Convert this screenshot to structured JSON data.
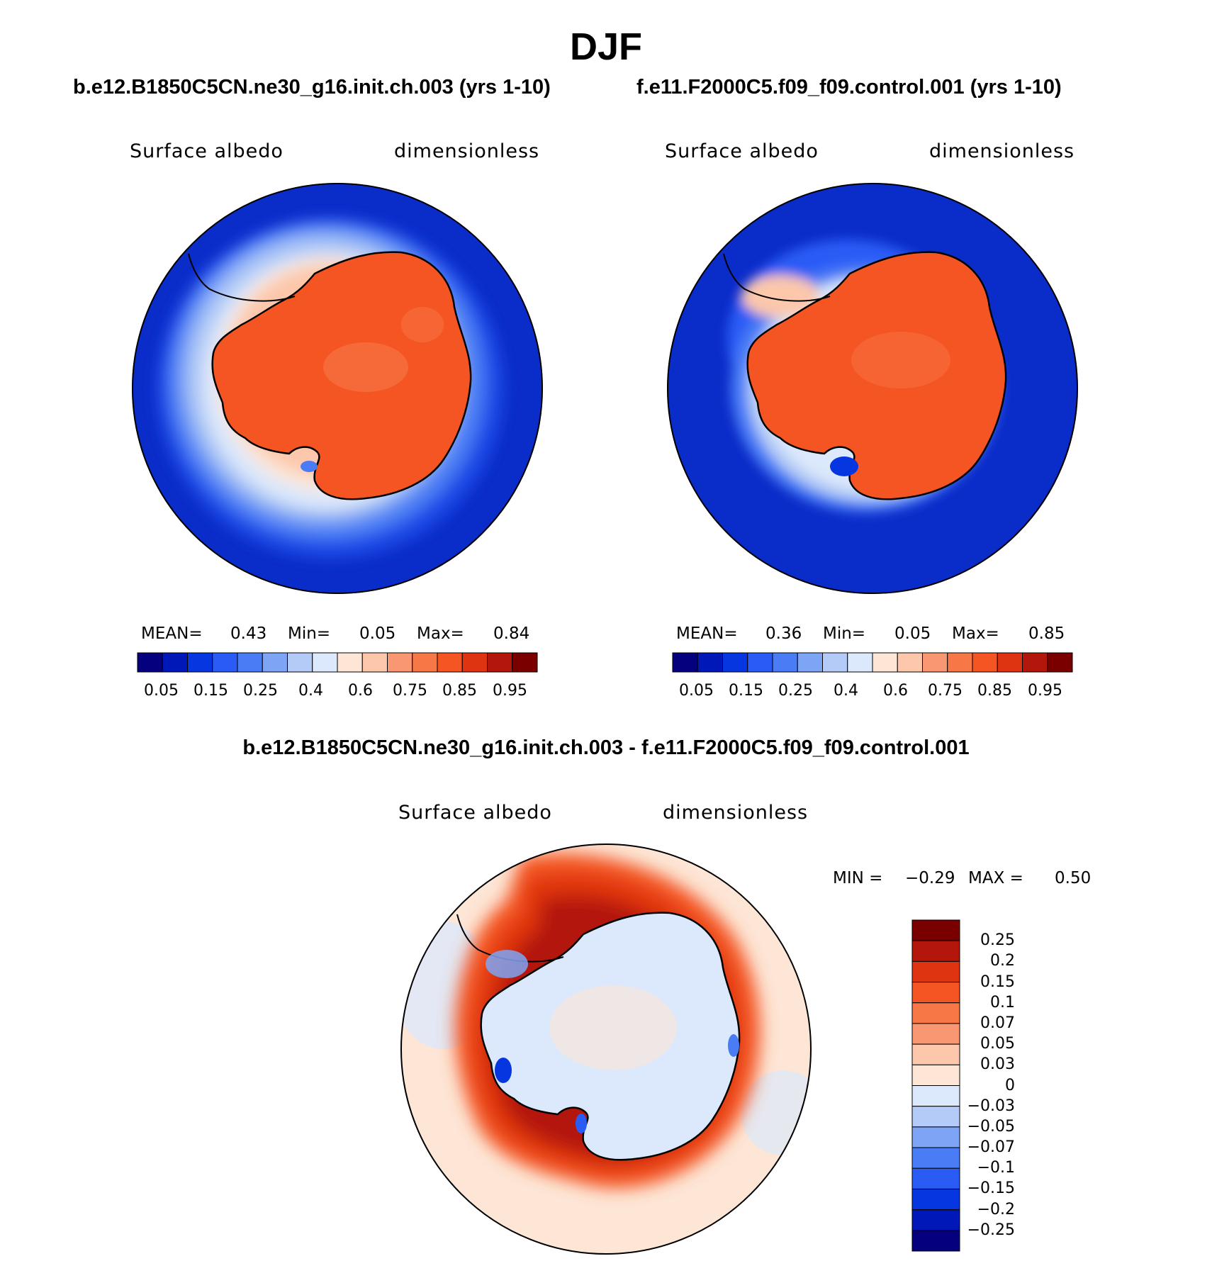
{
  "figure": {
    "title": "DJF"
  },
  "chart_data": [
    {
      "type": "heatmap",
      "panel": "left",
      "title": "b.e12.B1850C5CN.ne30_g16.init.ch.003 (yrs 1-10)",
      "variable": "Surface albedo",
      "units": "dimensionless",
      "stats": {
        "mean_label": "MEAN=",
        "mean": "0.43",
        "min_label": "Min=",
        "min": "0.05",
        "max_label": "Max=",
        "max": "0.84"
      },
      "colorbar": {
        "levels": [
          0.05,
          0.1,
          0.15,
          0.2,
          0.25,
          0.3,
          0.4,
          0.5,
          0.6,
          0.7,
          0.75,
          0.8,
          0.85,
          0.9,
          0.95
        ],
        "tick_labels": [
          "0.05",
          "0.15",
          "0.25",
          "0.4",
          "0.6",
          "0.75",
          "0.85",
          "0.95"
        ],
        "colors": [
          "#05007e",
          "#0018b8",
          "#0636e0",
          "#2a5cf5",
          "#4a7cf5",
          "#7ea4f5",
          "#b3cbf6",
          "#dce8fb",
          "#fde6d6",
          "#fcc7ab",
          "#f99773",
          "#f77747",
          "#f45522",
          "#df3411",
          "#b3160b",
          "#7a0000"
        ]
      }
    },
    {
      "type": "heatmap",
      "panel": "right",
      "title": "f.e11.F2000C5.f09_f09.control.001 (yrs 1-10)",
      "variable": "Surface albedo",
      "units": "dimensionless",
      "stats": {
        "mean_label": "MEAN=",
        "mean": "0.36",
        "min_label": "Min=",
        "min": "0.05",
        "max_label": "Max=",
        "max": "0.85"
      },
      "colorbar": {
        "levels": [
          0.05,
          0.1,
          0.15,
          0.2,
          0.25,
          0.3,
          0.4,
          0.5,
          0.6,
          0.7,
          0.75,
          0.8,
          0.85,
          0.9,
          0.95
        ],
        "tick_labels": [
          "0.05",
          "0.15",
          "0.25",
          "0.4",
          "0.6",
          "0.75",
          "0.85",
          "0.95"
        ],
        "colors": [
          "#05007e",
          "#0018b8",
          "#0636e0",
          "#2a5cf5",
          "#4a7cf5",
          "#7ea4f5",
          "#b3cbf6",
          "#dce8fb",
          "#fde6d6",
          "#fcc7ab",
          "#f99773",
          "#f77747",
          "#f45522",
          "#df3411",
          "#b3160b",
          "#7a0000"
        ]
      }
    },
    {
      "type": "heatmap",
      "panel": "difference",
      "title": "b.e12.B1850C5CN.ne30_g16.init.ch.003 - f.e11.F2000C5.f09_f09.control.001",
      "variable": "Surface albedo",
      "units": "dimensionless",
      "stats": {
        "min_label": "MIN =",
        "min": "−0.29",
        "max_label": "MAX =",
        "max": "0.50"
      },
      "colorbar": {
        "levels": [
          0.25,
          0.2,
          0.15,
          0.1,
          0.07,
          0.05,
          0.03,
          0,
          -0.03,
          -0.05,
          -0.07,
          -0.1,
          -0.15,
          -0.2,
          -0.25
        ],
        "tick_labels": [
          "0.25",
          "0.2",
          "0.15",
          "0.1",
          "0.07",
          "0.05",
          "0.03",
          "0",
          "−0.03",
          "−0.05",
          "−0.07",
          "−0.1",
          "−0.15",
          "−0.2",
          "−0.25"
        ],
        "colors": [
          "#7a0000",
          "#b3160b",
          "#df3411",
          "#f45522",
          "#f77747",
          "#f99773",
          "#fcc7ab",
          "#fde6d6",
          "#dce8fb",
          "#b3cbf6",
          "#7ea4f5",
          "#4a7cf5",
          "#2a5cf5",
          "#0636e0",
          "#0018b8",
          "#05007e"
        ]
      }
    }
  ]
}
